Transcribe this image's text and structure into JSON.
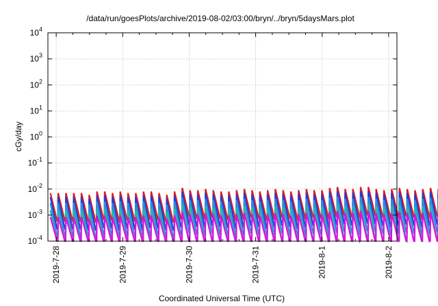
{
  "chart_data": {
    "type": "line",
    "title": "/data/run/goesPlots/archive/2019-08-02/03:00/bryn/../bryn/5daysMars.plot",
    "xlabel": "Coordinated Universal Time (UTC)",
    "ylabel": "cGy/day",
    "yscale": "log",
    "ylim": [
      0.0001,
      10000
    ],
    "xlim": [
      "2019-07-27 21:00",
      "2019-08-02 03:00"
    ],
    "grid": true,
    "y_ticks": [
      {
        "base": "10",
        "exp": "-4"
      },
      {
        "base": "10",
        "exp": "-3"
      },
      {
        "base": "10",
        "exp": "-2"
      },
      {
        "base": "10",
        "exp": "-1"
      },
      {
        "base": "10",
        "exp": "0"
      },
      {
        "base": "10",
        "exp": "1"
      },
      {
        "base": "10",
        "exp": "2"
      },
      {
        "base": "10",
        "exp": "3"
      },
      {
        "base": "10",
        "exp": "4"
      }
    ],
    "x_ticks": [
      "2019-7-28",
      "2019-7-29",
      "2019-7-30",
      "2019-7-31",
      "2019-8-1",
      "2019-8-2"
    ],
    "sawtooth": {
      "period_hours": 2.8,
      "peaks": [
        0.007,
        0.007,
        0.007,
        0.007,
        0.007,
        0.006,
        0.008,
        0.008,
        0.007,
        0.008,
        0.007,
        0.007,
        0.008,
        0.008,
        0.007,
        0.006,
        0.008,
        0.011,
        0.009,
        0.009,
        0.01,
        0.009,
        0.008,
        0.008,
        0.009,
        0.01,
        0.009,
        0.008,
        0.009,
        0.01,
        0.009,
        0.008,
        0.009,
        0.01,
        0.009,
        0.009,
        0.011,
        0.012,
        0.01,
        0.01,
        0.012,
        0.012,
        0.01,
        0.009,
        0.01,
        0.011,
        0.01,
        0.009,
        0.01,
        0.011,
        0.01,
        0.009
      ],
      "series": [
        {
          "color": "#e31a1c",
          "peak_factor": 1.0,
          "trough_factor": 0.085
        },
        {
          "color": "#1f3fd8",
          "peak_factor": 0.7,
          "trough_factor": 0.06
        },
        {
          "color": "#2a8fe0",
          "peak_factor": 0.42,
          "trough_factor": 0.05
        },
        {
          "color": "#27b8a8",
          "peak_factor": 0.22,
          "trough_factor": 0.045
        },
        {
          "color": "#e010e0",
          "peak_factor": 0.12,
          "trough_factor": 0.012
        }
      ]
    }
  }
}
